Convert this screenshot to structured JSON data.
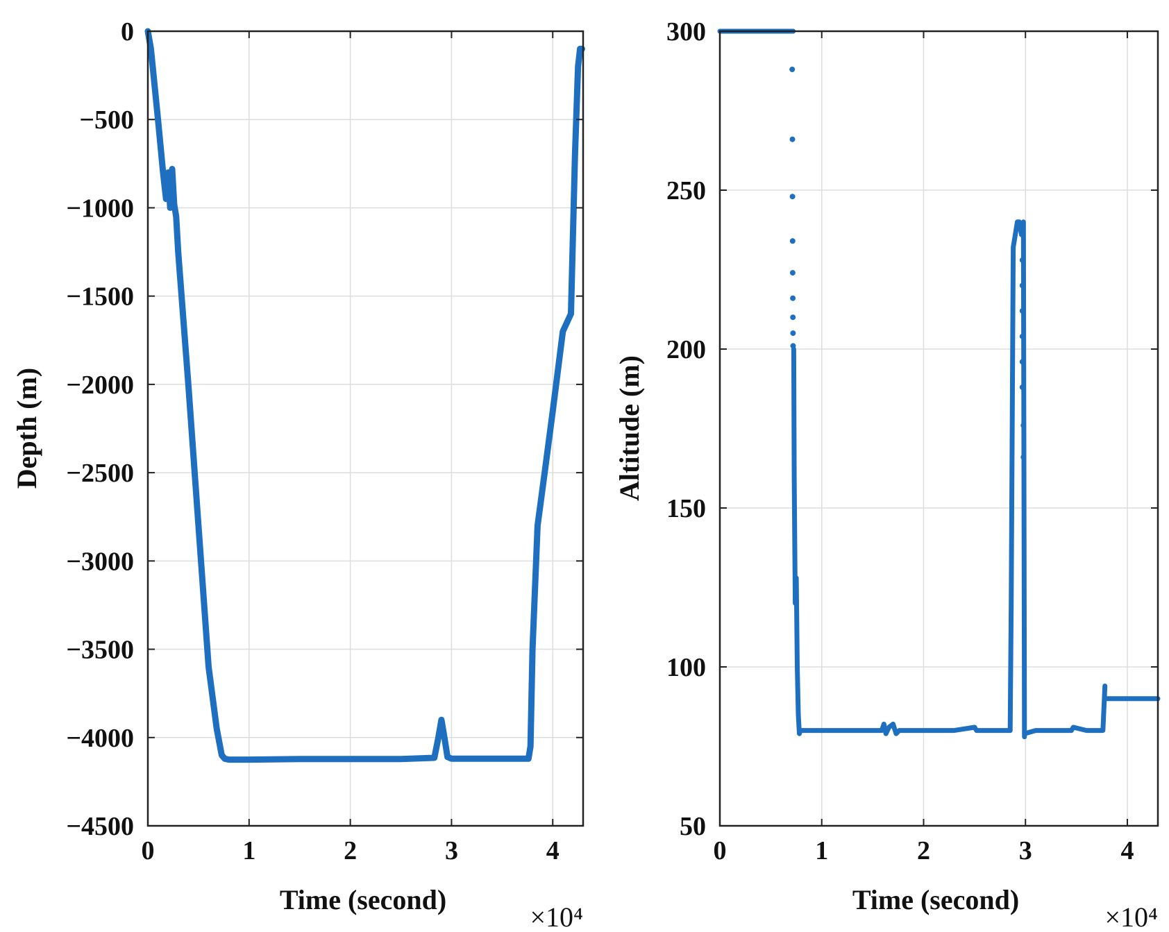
{
  "chart_data": [
    {
      "type": "line",
      "xlabel": "Time (second)",
      "ylabel": "Depth (m)",
      "x_exponent_label": "×10⁴",
      "xlim": [
        0,
        43000
      ],
      "ylim": [
        -4500,
        0
      ],
      "xticks": [
        0,
        10000,
        20000,
        30000,
        40000
      ],
      "xtick_labels": [
        "0",
        "1",
        "2",
        "3",
        "4"
      ],
      "yticks": [
        0,
        -500,
        -1000,
        -1500,
        -2000,
        -2500,
        -3000,
        -3500,
        -4000,
        -4500
      ],
      "ytick_labels": [
        "0",
        "−500",
        "−1000",
        "−1500",
        "−2000",
        "−2500",
        "−3000",
        "−3500",
        "−4000",
        "−4500"
      ],
      "grid": true,
      "color": "#1f6fc0",
      "series": [
        {
          "x": [
            0,
            300,
            1000,
            1500,
            1800,
            2000,
            2200,
            2400,
            2600,
            2800,
            3000,
            4000,
            5000,
            6000,
            6800,
            7300,
            7600,
            8000,
            10000,
            15000,
            20000,
            25000,
            28300,
            28700,
            29000,
            29300,
            29600,
            30000,
            35000,
            37600,
            37800,
            38000,
            38500,
            39200,
            40000,
            41000,
            41800,
            42200,
            42500,
            42700,
            42900
          ],
          "y": [
            0,
            -100,
            -500,
            -800,
            -950,
            -800,
            -1000,
            -780,
            -980,
            -1050,
            -1250,
            -2000,
            -2800,
            -3600,
            -3950,
            -4100,
            -4120,
            -4125,
            -4125,
            -4122,
            -4122,
            -4122,
            -4115,
            -4000,
            -3900,
            -4000,
            -4110,
            -4120,
            -4120,
            -4120,
            -4050,
            -3500,
            -2800,
            -2500,
            -2150,
            -1700,
            -1600,
            -700,
            -200,
            -100,
            -100
          ]
        }
      ]
    },
    {
      "type": "scatter",
      "xlabel": "Time (second)",
      "ylabel": "Altitude (m)",
      "x_exponent_label": "×10⁴",
      "xlim": [
        0,
        43000
      ],
      "ylim": [
        50,
        300
      ],
      "xticks": [
        0,
        10000,
        20000,
        30000,
        40000
      ],
      "xtick_labels": [
        "0",
        "1",
        "2",
        "3",
        "4"
      ],
      "yticks": [
        50,
        100,
        150,
        200,
        250,
        300
      ],
      "ytick_labels": [
        "50",
        "100",
        "150",
        "200",
        "250",
        "300"
      ],
      "grid": true,
      "color": "#1f6fc0",
      "segments": [
        {
          "x": [
            0,
            7200
          ],
          "y": [
            300,
            300
          ]
        },
        {
          "x": [
            7250,
            7300,
            7400,
            7500,
            7600,
            7700,
            7800,
            7900,
            8000,
            8200
          ],
          "y": [
            200,
            160,
            120,
            128,
            100,
            85,
            79,
            80,
            80,
            80
          ]
        },
        {
          "x": [
            8200,
            10000,
            12000,
            14000,
            15900,
            16100,
            16300,
            16600,
            17000,
            17300,
            17600,
            19000,
            21000,
            23000,
            25000,
            25200,
            27000,
            28500
          ],
          "y": [
            80,
            80,
            80,
            80,
            80,
            82,
            79,
            81,
            82,
            79,
            80,
            80,
            80,
            80,
            81,
            80,
            80,
            80
          ]
        },
        {
          "x": [
            28500,
            28600,
            28800,
            29000,
            29200,
            29400,
            29600,
            29800,
            29900
          ],
          "y": [
            80,
            120,
            232,
            236,
            240,
            240,
            236,
            240,
            78
          ]
        },
        {
          "x": [
            29900,
            31000,
            33000,
            34500,
            34700,
            36000,
            37500
          ],
          "y": [
            79,
            80,
            80,
            80,
            81,
            80,
            80
          ]
        },
        {
          "x": [
            37600,
            37800
          ],
          "y": [
            80,
            94
          ]
        },
        {
          "x": [
            37800,
            43000
          ],
          "y": [
            90,
            90
          ]
        }
      ],
      "points": [
        {
          "x": 7100,
          "y": 288
        },
        {
          "x": 7120,
          "y": 266
        },
        {
          "x": 7130,
          "y": 248
        },
        {
          "x": 7140,
          "y": 234
        },
        {
          "x": 7150,
          "y": 224
        },
        {
          "x": 7160,
          "y": 216
        },
        {
          "x": 7170,
          "y": 210
        },
        {
          "x": 7180,
          "y": 205
        },
        {
          "x": 7190,
          "y": 201
        },
        {
          "x": 29700,
          "y": 228
        },
        {
          "x": 29700,
          "y": 220
        },
        {
          "x": 29700,
          "y": 212
        },
        {
          "x": 29700,
          "y": 204
        },
        {
          "x": 29700,
          "y": 196
        },
        {
          "x": 29700,
          "y": 188
        },
        {
          "x": 29800,
          "y": 176
        },
        {
          "x": 29800,
          "y": 166
        }
      ]
    }
  ]
}
